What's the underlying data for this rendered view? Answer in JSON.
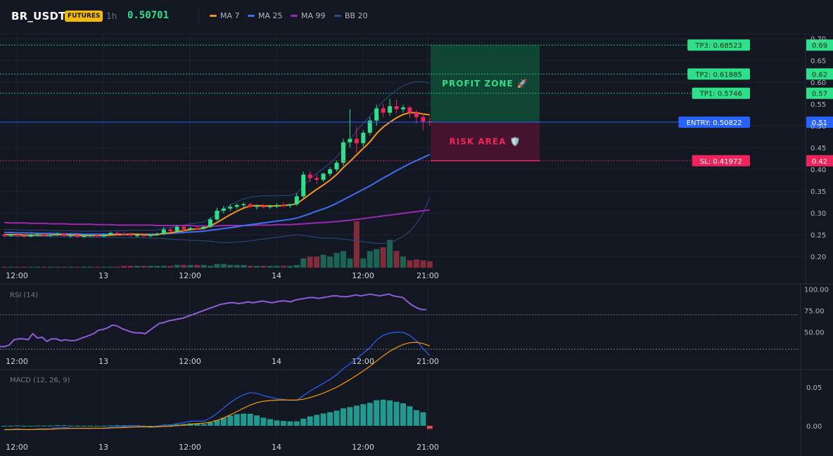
{
  "header": {
    "symbol": "BR_USDT",
    "badge": "FUTURES",
    "interval": "1h",
    "last_price": "0.50701"
  },
  "legend": [
    {
      "label": "MA 7",
      "color": "#f7931a"
    },
    {
      "label": "MA 25",
      "color": "#3b6ff5"
    },
    {
      "label": "MA 99",
      "color": "#9c27b0"
    },
    {
      "label": "BB 20",
      "color": "#2c4a8a"
    }
  ],
  "x_ticks": [
    "12:00",
    "13",
    "12:00",
    "14",
    "12:00",
    "21:00"
  ],
  "price_axis": [
    "0.70",
    "0.65",
    "0.60",
    "0.55",
    "0.50",
    "0.45",
    "0.40",
    "0.35",
    "0.30",
    "0.25",
    "0.20"
  ],
  "levels": [
    {
      "label": "TP3: 0.68523",
      "value": "0.69",
      "price": 0.68523,
      "color": "#2ee08a",
      "text_color": "#0b2a1a"
    },
    {
      "label": "TP2: 0.61885",
      "value": "0.62",
      "price": 0.61885,
      "color": "#2ee08a",
      "text_color": "#0b2a1a"
    },
    {
      "label": "TP1: 0.5746",
      "value": "0.57",
      "price": 0.5746,
      "color": "#2ee08a",
      "text_color": "#0b2a1a"
    },
    {
      "label": "ENTRY: 0.50822",
      "value": "0.51",
      "price": 0.50822,
      "color": "#2962ff",
      "text_color": "#ffffff"
    },
    {
      "label": "SL: 0.41972",
      "value": "0.42",
      "price": 0.41972,
      "color": "#f0245c",
      "text_color": "#ffffff"
    }
  ],
  "zones": {
    "profit_label": "PROFIT ZONE 🚀",
    "risk_label": "RISK AREA 🛡️"
  },
  "rsi": {
    "title": "RSI (14)",
    "axis": [
      "100.00",
      "75.00",
      "50.00"
    ],
    "upper": 70,
    "lower": 30,
    "values": [
      33,
      33,
      35,
      41,
      42,
      42,
      41,
      48,
      43,
      44,
      39,
      42,
      42,
      40,
      41,
      40,
      40,
      42,
      44,
      46,
      48,
      52,
      53,
      55,
      58,
      57,
      54,
      52,
      50,
      49,
      49,
      48,
      52,
      56,
      60,
      61,
      63,
      64,
      65,
      66,
      68,
      70,
      72,
      74,
      76,
      78,
      80,
      82,
      83,
      84,
      84,
      83,
      84,
      85,
      84,
      85,
      86,
      85,
      84,
      85,
      86,
      86,
      85,
      87,
      88,
      89,
      90,
      90,
      89,
      90,
      91,
      92,
      92,
      91,
      91,
      92,
      93,
      92,
      93,
      94,
      93,
      92,
      93,
      94,
      92,
      91,
      90,
      85,
      81,
      78,
      76,
      76
    ]
  },
  "macd": {
    "title": "MACD (12, 26, 9)",
    "axis": [
      "0.05",
      "0.00"
    ]
  },
  "chart_data": {
    "type": "candlestick",
    "title": "BR_USDT",
    "x_tick_labels": [
      "12:00",
      "13",
      "12:00",
      "14",
      "12:00",
      "21:00"
    ],
    "ylim": [
      0.16,
      0.71
    ],
    "candles": [
      [
        0.25,
        0.252,
        0.244,
        0.248
      ],
      [
        0.248,
        0.253,
        0.245,
        0.25
      ],
      [
        0.25,
        0.254,
        0.246,
        0.248
      ],
      [
        0.248,
        0.251,
        0.243,
        0.246
      ],
      [
        0.246,
        0.252,
        0.244,
        0.25
      ],
      [
        0.25,
        0.254,
        0.247,
        0.251
      ],
      [
        0.251,
        0.253,
        0.246,
        0.248
      ],
      [
        0.248,
        0.252,
        0.245,
        0.25
      ],
      [
        0.25,
        0.255,
        0.247,
        0.252
      ],
      [
        0.252,
        0.254,
        0.246,
        0.247
      ],
      [
        0.247,
        0.251,
        0.243,
        0.249
      ],
      [
        0.249,
        0.252,
        0.244,
        0.245
      ],
      [
        0.245,
        0.25,
        0.243,
        0.248
      ],
      [
        0.248,
        0.251,
        0.245,
        0.249
      ],
      [
        0.249,
        0.252,
        0.244,
        0.246
      ],
      [
        0.246,
        0.252,
        0.244,
        0.25
      ],
      [
        0.25,
        0.257,
        0.248,
        0.254
      ],
      [
        0.254,
        0.258,
        0.249,
        0.252
      ],
      [
        0.252,
        0.256,
        0.248,
        0.251
      ],
      [
        0.251,
        0.254,
        0.246,
        0.248
      ],
      [
        0.248,
        0.253,
        0.244,
        0.249
      ],
      [
        0.249,
        0.252,
        0.245,
        0.247
      ],
      [
        0.247,
        0.251,
        0.244,
        0.25
      ],
      [
        0.25,
        0.255,
        0.247,
        0.252
      ],
      [
        0.252,
        0.268,
        0.249,
        0.262
      ],
      [
        0.262,
        0.266,
        0.255,
        0.258
      ],
      [
        0.258,
        0.272,
        0.256,
        0.268
      ],
      [
        0.268,
        0.272,
        0.258,
        0.262
      ],
      [
        0.262,
        0.268,
        0.259,
        0.265
      ],
      [
        0.265,
        0.27,
        0.261,
        0.264
      ],
      [
        0.264,
        0.27,
        0.262,
        0.268
      ],
      [
        0.268,
        0.29,
        0.265,
        0.285
      ],
      [
        0.285,
        0.312,
        0.282,
        0.305
      ],
      [
        0.305,
        0.316,
        0.298,
        0.31
      ],
      [
        0.31,
        0.32,
        0.304,
        0.314
      ],
      [
        0.314,
        0.322,
        0.309,
        0.318
      ],
      [
        0.318,
        0.324,
        0.312,
        0.32
      ],
      [
        0.32,
        0.323,
        0.31,
        0.314
      ],
      [
        0.314,
        0.318,
        0.308,
        0.316
      ],
      [
        0.316,
        0.32,
        0.31,
        0.313
      ],
      [
        0.313,
        0.319,
        0.309,
        0.316
      ],
      [
        0.316,
        0.322,
        0.311,
        0.318
      ],
      [
        0.318,
        0.324,
        0.313,
        0.317
      ],
      [
        0.317,
        0.321,
        0.312,
        0.32
      ],
      [
        0.32,
        0.345,
        0.316,
        0.338
      ],
      [
        0.338,
        0.395,
        0.334,
        0.388
      ],
      [
        0.388,
        0.396,
        0.37,
        0.38
      ],
      [
        0.38,
        0.388,
        0.366,
        0.376
      ],
      [
        0.376,
        0.392,
        0.371,
        0.39
      ],
      [
        0.39,
        0.405,
        0.384,
        0.4
      ],
      [
        0.4,
        0.42,
        0.395,
        0.415
      ],
      [
        0.415,
        0.47,
        0.408,
        0.462
      ],
      [
        0.462,
        0.538,
        0.45,
        0.47
      ],
      [
        0.47,
        0.498,
        0.438,
        0.46
      ],
      [
        0.46,
        0.49,
        0.452,
        0.484
      ],
      [
        0.484,
        0.52,
        0.478,
        0.512
      ],
      [
        0.512,
        0.548,
        0.5,
        0.54
      ],
      [
        0.54,
        0.55,
        0.52,
        0.53
      ],
      [
        0.53,
        0.562,
        0.522,
        0.545
      ],
      [
        0.545,
        0.56,
        0.528,
        0.538
      ],
      [
        0.538,
        0.548,
        0.53,
        0.542
      ],
      [
        0.542,
        0.546,
        0.518,
        0.53
      ],
      [
        0.53,
        0.536,
        0.505,
        0.52
      ],
      [
        0.52,
        0.528,
        0.49,
        0.51
      ],
      [
        0.51,
        0.52,
        0.5,
        0.507
      ]
    ],
    "volume": [
      1,
      1,
      1,
      1,
      1,
      1,
      1,
      1,
      1,
      1,
      1,
      1,
      1,
      1,
      1,
      1,
      1,
      1,
      2,
      2,
      2,
      2,
      2,
      2,
      2,
      2,
      3,
      3,
      3,
      3,
      3,
      2,
      4,
      4,
      3,
      3,
      3,
      2,
      2,
      2,
      2,
      2,
      2,
      2,
      3,
      10,
      12,
      12,
      14,
      12,
      16,
      18,
      10,
      50,
      10,
      18,
      20,
      22,
      30,
      18,
      12,
      8,
      9,
      8,
      7
    ],
    "ma7": [
      0.25,
      0.25,
      0.25,
      0.249,
      0.249,
      0.249,
      0.249,
      0.249,
      0.25,
      0.25,
      0.249,
      0.249,
      0.248,
      0.248,
      0.248,
      0.248,
      0.249,
      0.25,
      0.25,
      0.251,
      0.251,
      0.25,
      0.249,
      0.25,
      0.253,
      0.254,
      0.257,
      0.259,
      0.262,
      0.263,
      0.264,
      0.27,
      0.278,
      0.287,
      0.296,
      0.304,
      0.311,
      0.316,
      0.317,
      0.316,
      0.316,
      0.316,
      0.317,
      0.318,
      0.321,
      0.332,
      0.343,
      0.354,
      0.364,
      0.375,
      0.388,
      0.404,
      0.418,
      0.433,
      0.448,
      0.463,
      0.482,
      0.497,
      0.508,
      0.518,
      0.526,
      0.53,
      0.53,
      0.527,
      0.525
    ],
    "ma25": [
      0.255,
      0.255,
      0.254,
      0.254,
      0.254,
      0.253,
      0.253,
      0.253,
      0.252,
      0.252,
      0.252,
      0.252,
      0.251,
      0.251,
      0.251,
      0.251,
      0.251,
      0.251,
      0.251,
      0.251,
      0.251,
      0.251,
      0.251,
      0.251,
      0.252,
      0.253,
      0.254,
      0.255,
      0.256,
      0.257,
      0.258,
      0.26,
      0.262,
      0.264,
      0.266,
      0.268,
      0.271,
      0.273,
      0.275,
      0.277,
      0.279,
      0.281,
      0.283,
      0.285,
      0.288,
      0.293,
      0.298,
      0.304,
      0.309,
      0.315,
      0.322,
      0.33,
      0.338,
      0.346,
      0.354,
      0.362,
      0.371,
      0.38,
      0.388,
      0.397,
      0.405,
      0.413,
      0.42,
      0.427,
      0.434
    ],
    "ma99": [
      0.278,
      0.277,
      0.277,
      0.277,
      0.276,
      0.276,
      0.276,
      0.275,
      0.275,
      0.275,
      0.274,
      0.274,
      0.274,
      0.274,
      0.273,
      0.273,
      0.273,
      0.272,
      0.272,
      0.272,
      0.272,
      0.272,
      0.272,
      0.271,
      0.271,
      0.271,
      0.271,
      0.271,
      0.271,
      0.27,
      0.27,
      0.27,
      0.27,
      0.271,
      0.271,
      0.271,
      0.271,
      0.271,
      0.272,
      0.272,
      0.272,
      0.273,
      0.273,
      0.273,
      0.274,
      0.275,
      0.276,
      0.277,
      0.278,
      0.279,
      0.28,
      0.282,
      0.283,
      0.285,
      0.287,
      0.289,
      0.291,
      0.293,
      0.295,
      0.297,
      0.299,
      0.301,
      0.303,
      0.305,
      0.307
    ],
    "bb_upper": [
      0.262,
      0.262,
      0.261,
      0.261,
      0.26,
      0.26,
      0.26,
      0.259,
      0.259,
      0.259,
      0.259,
      0.258,
      0.258,
      0.258,
      0.258,
      0.258,
      0.259,
      0.259,
      0.259,
      0.26,
      0.26,
      0.26,
      0.26,
      0.261,
      0.264,
      0.266,
      0.269,
      0.272,
      0.275,
      0.277,
      0.279,
      0.287,
      0.298,
      0.309,
      0.318,
      0.326,
      0.332,
      0.336,
      0.338,
      0.339,
      0.339,
      0.339,
      0.34,
      0.34,
      0.345,
      0.362,
      0.378,
      0.39,
      0.402,
      0.414,
      0.428,
      0.448,
      0.468,
      0.488,
      0.506,
      0.522,
      0.54,
      0.556,
      0.57,
      0.582,
      0.592,
      0.598,
      0.601,
      0.601,
      0.598
    ],
    "bb_lower": [
      0.246,
      0.246,
      0.246,
      0.246,
      0.246,
      0.246,
      0.246,
      0.245,
      0.245,
      0.245,
      0.245,
      0.245,
      0.245,
      0.244,
      0.244,
      0.244,
      0.244,
      0.244,
      0.243,
      0.243,
      0.243,
      0.243,
      0.242,
      0.242,
      0.241,
      0.24,
      0.239,
      0.238,
      0.237,
      0.237,
      0.236,
      0.235,
      0.233,
      0.232,
      0.232,
      0.233,
      0.234,
      0.236,
      0.238,
      0.24,
      0.242,
      0.244,
      0.246,
      0.248,
      0.25,
      0.248,
      0.246,
      0.244,
      0.242,
      0.242,
      0.241,
      0.24,
      0.238,
      0.236,
      0.234,
      0.232,
      0.23,
      0.23,
      0.232,
      0.238,
      0.246,
      0.258,
      0.276,
      0.298,
      0.335
    ]
  }
}
